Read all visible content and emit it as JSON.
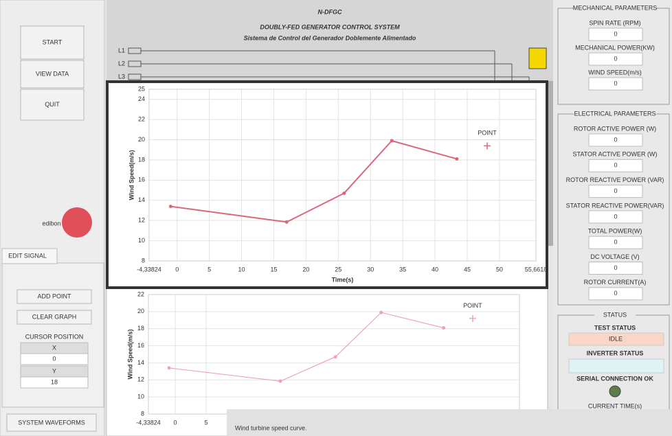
{
  "left_panel": {
    "buttons": [
      "START",
      "VIEW DATA",
      "QUIT"
    ],
    "logo": "edibon",
    "tab": "EDIT SIGNAL",
    "edit_buttons": [
      "ADD POINT",
      "CLEAR GRAPH"
    ],
    "cursor_position": {
      "title": "CURSOR POSITION",
      "x_label": "X",
      "x_value": 0,
      "y_label": "Y",
      "y_value": 18
    },
    "system_button": "SYSTEM WAVEFORMS"
  },
  "header": {
    "title": "N-DFGC",
    "subtitle": "DOUBLY-FED GENERATOR CONTROL SYSTEM",
    "subtitle_es": "Sistema de Control del Generador Doblemente Alimentado",
    "lines": [
      "L1",
      "L2",
      "L3"
    ]
  },
  "main_chart": {
    "type": "line",
    "x_label": "Time(s)",
    "y_label": "Wind Speed(m/s)",
    "x": [
      -1.0,
      17.0,
      25.9,
      33.3,
      43.4
    ],
    "values": [
      13.4,
      11.85,
      14.7,
      19.9,
      18.1
    ],
    "color": "#d9667a",
    "xlim": [
      -4.33824,
      55.6618
    ],
    "ylim": [
      8,
      25
    ],
    "xticks": [
      {
        "value": -4.33824,
        "label": "-4,33824"
      },
      0,
      5,
      10,
      15,
      20,
      25,
      30,
      35,
      40,
      45,
      50,
      {
        "value": 55.6618,
        "label": "55,6618"
      }
    ],
    "yticks": [
      8,
      10,
      12,
      14,
      16,
      18,
      20,
      22,
      24,
      25
    ],
    "grid": true,
    "marker": {
      "label": "POINT",
      "x": 48.1,
      "y": 19.4
    }
  },
  "back_chart": {
    "type": "line",
    "y_label": "Wind Speed(m/s)",
    "x": [
      -1.0,
      17.0,
      25.9,
      33.3,
      43.4
    ],
    "values": [
      13.4,
      11.85,
      14.7,
      19.9,
      18.1
    ],
    "color": "#eea3b0",
    "xlim": [
      -4.33824,
      55.6618
    ],
    "ylim": [
      8,
      22
    ],
    "xticks": [
      {
        "value": -4.33824,
        "label": "-4,33824"
      },
      0,
      5
    ],
    "yticks": [
      8,
      10,
      12,
      14,
      16,
      18,
      20,
      22
    ],
    "grid": true,
    "marker": {
      "label": "POINT",
      "x": 48.1,
      "y": 19.2
    }
  },
  "mechanical": {
    "title": "MECHANICAL PARAMETERS",
    "fields": [
      {
        "label": "SPIN RATE (RPM)",
        "value": 0
      },
      {
        "label": "MECHANICAL POWER(KW)",
        "value": 0
      },
      {
        "label": "WIND SPEED(m/s)",
        "value": 0
      }
    ]
  },
  "electrical": {
    "title": "ELECTRICAL PARAMETERS",
    "fields": [
      {
        "label": "ROTOR ACTIVE POWER (W)",
        "value": 0
      },
      {
        "label": "STATOR ACTIVE POWER (W)",
        "value": 0
      },
      {
        "label": "ROTOR REACTIVE POWER (VAR)",
        "value": 0
      },
      {
        "label": "STATOR REACTIVE POWER(VAR)",
        "value": 0
      },
      {
        "label": "TOTAL POWER(W)",
        "value": 0
      },
      {
        "label": "DC VOLTAGE (V)",
        "value": 0
      },
      {
        "label": "ROTOR CURRENT(A)",
        "value": 0
      }
    ]
  },
  "status": {
    "title": "STATUS",
    "test_status_label": "TEST STATUS",
    "test_status": "IDLE",
    "inverter_status_label": "INVERTER STATUS",
    "serial": "SERIAL CONNECTION OK",
    "current_time": "CURRENT TIME(s)"
  },
  "caption": "Wind turbine speed curve."
}
